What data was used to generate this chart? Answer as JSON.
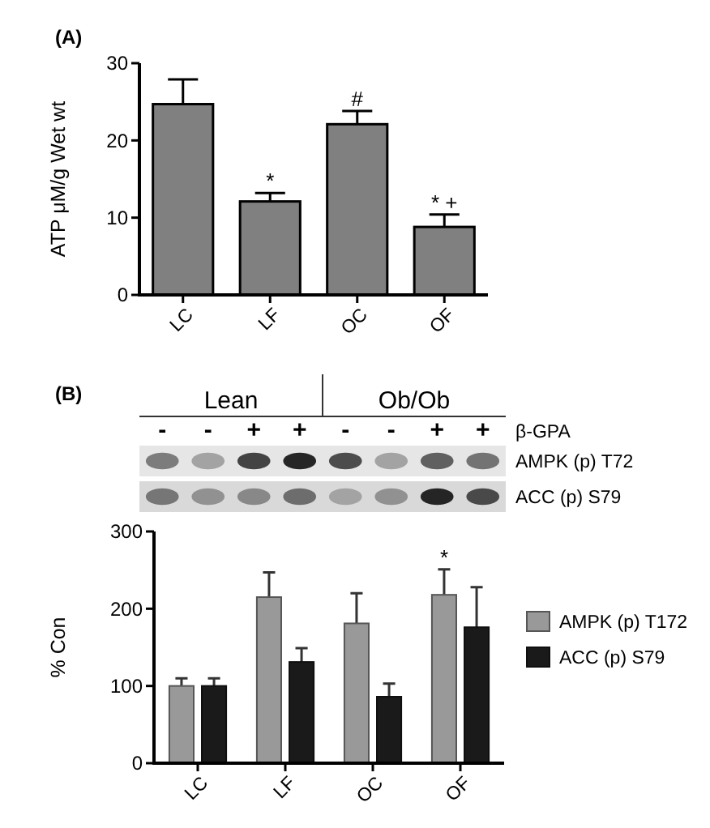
{
  "chart_data": [
    {
      "type": "bar",
      "title": "(A)",
      "ylabel": "ATP μM/g Wet wt",
      "categories": [
        "LC",
        "LF",
        "OC",
        "OF"
      ],
      "values": [
        24.7,
        12.1,
        22.1,
        8.8
      ],
      "errors": [
        3.2,
        1.1,
        1.7,
        1.6
      ],
      "color": "#808080",
      "ylim": [
        0,
        30
      ],
      "yticks": [
        0,
        10,
        20,
        30
      ],
      "annotations": [
        {
          "text": "*",
          "x": "LF",
          "y": 13.2
        },
        {
          "text": "#",
          "x": "OC",
          "y": 23.8
        },
        {
          "text": "* +",
          "x": "OF",
          "y": 10.4
        }
      ]
    },
    {
      "type": "other",
      "title": "(B)",
      "annotations": [
        "Lean",
        "Ob/Ob",
        "β-GPA",
        "-",
        "-",
        "+",
        "+",
        "-",
        "-",
        "+",
        "+",
        "AMPK (p) T72",
        "ACC (p) S79"
      ]
    },
    {
      "type": "bar",
      "ylabel": "% Con",
      "categories": [
        "LC",
        "LF",
        "OC",
        "OF"
      ],
      "series": [
        {
          "name": "AMPK (p) T172",
          "color": "#999999",
          "values": [
            100,
            215,
            181,
            218
          ],
          "errors": [
            10,
            32,
            39,
            33
          ]
        },
        {
          "name": "ACC (p) S79",
          "color": "#1a1a1a",
          "values": [
            100,
            131,
            86,
            176
          ],
          "errors": [
            10,
            18,
            17,
            52
          ]
        }
      ],
      "ylim": [
        0,
        300
      ],
      "yticks": [
        0,
        100,
        200,
        300
      ],
      "legend": "right",
      "annotations": [
        "*"
      ]
    }
  ]
}
